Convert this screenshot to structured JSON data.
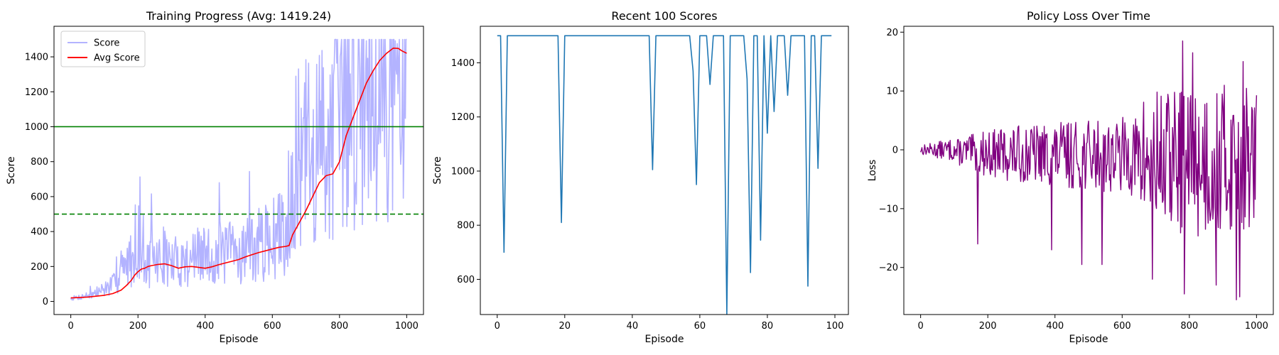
{
  "chart_data": [
    {
      "type": "line",
      "title": "Training Progress (Avg: 1419.24)",
      "xlabel": "Episode",
      "ylabel": "Score",
      "xlim": [
        -50,
        1050
      ],
      "ylim": [
        -75,
        1575
      ],
      "xticks": [
        0,
        200,
        400,
        600,
        800,
        1000
      ],
      "yticks": [
        0,
        200,
        400,
        600,
        800,
        1000,
        1200,
        1400
      ],
      "legend": "upper-left",
      "hlines": [
        {
          "y": 1000,
          "style": "solid",
          "color": "#008000"
        },
        {
          "y": 500,
          "style": "dashed",
          "color": "#008000"
        }
      ],
      "series": [
        {
          "name": "Score",
          "color": "#b3b3ff",
          "x": [
            0,
            20,
            40,
            60,
            80,
            100,
            120,
            140,
            150,
            160,
            170,
            180,
            190,
            200,
            210,
            220,
            240,
            260,
            280,
            300,
            320,
            340,
            360,
            380,
            400,
            420,
            440,
            460,
            480,
            500,
            520,
            540,
            560,
            580,
            600,
            620,
            640,
            650,
            660,
            680,
            700,
            720,
            740,
            760,
            780,
            800,
            820,
            840,
            860,
            880,
            900,
            920,
            940,
            960,
            980,
            1000
          ],
          "values": [
            20,
            25,
            35,
            40,
            60,
            80,
            100,
            120,
            260,
            160,
            300,
            250,
            380,
            420,
            260,
            200,
            280,
            250,
            300,
            230,
            270,
            250,
            290,
            280,
            300,
            270,
            310,
            300,
            320,
            300,
            350,
            330,
            360,
            370,
            400,
            420,
            450,
            700,
            820,
            900,
            950,
            880,
            1000,
            1050,
            1150,
            1100,
            1250,
            1300,
            1400,
            1450,
            1480,
            1500,
            1420,
            1500,
            1350,
            1400
          ]
        },
        {
          "name": "Avg Score",
          "color": "#ff0000",
          "x": [
            0,
            25,
            50,
            75,
            100,
            125,
            150,
            165,
            180,
            190,
            200,
            210,
            220,
            230,
            240,
            260,
            280,
            300,
            320,
            340,
            360,
            380,
            400,
            420,
            440,
            460,
            480,
            500,
            520,
            540,
            560,
            580,
            600,
            620,
            640,
            650,
            660,
            680,
            700,
            720,
            740,
            760,
            780,
            800,
            820,
            840,
            860,
            880,
            900,
            920,
            940,
            960,
            975,
            985,
            1000
          ],
          "values": [
            20,
            22,
            25,
            30,
            35,
            45,
            65,
            90,
            120,
            150,
            170,
            185,
            190,
            200,
            205,
            212,
            215,
            205,
            190,
            198,
            200,
            195,
            190,
            198,
            210,
            220,
            230,
            240,
            255,
            268,
            280,
            290,
            300,
            310,
            315,
            320,
            380,
            450,
            520,
            600,
            680,
            720,
            730,
            800,
            950,
            1050,
            1150,
            1250,
            1320,
            1380,
            1420,
            1450,
            1448,
            1435,
            1420
          ]
        }
      ]
    },
    {
      "type": "line",
      "title": "Recent 100 Scores",
      "xlabel": "Episode",
      "ylabel": "Score",
      "xlim": [
        -5,
        104
      ],
      "ylim": [
        470,
        1535
      ],
      "xticks": [
        0,
        20,
        40,
        60,
        80,
        100
      ],
      "yticks": [
        600,
        800,
        1000,
        1200,
        1400
      ],
      "series": [
        {
          "color": "#1f77b4",
          "values": [
            1500,
            1500,
            700,
            1500,
            1500,
            1500,
            1500,
            1500,
            1500,
            1500,
            1500,
            1500,
            1500,
            1500,
            1500,
            1500,
            1500,
            1500,
            1500,
            810,
            1500,
            1500,
            1500,
            1500,
            1500,
            1500,
            1500,
            1500,
            1500,
            1500,
            1500,
            1500,
            1500,
            1500,
            1500,
            1500,
            1500,
            1500,
            1500,
            1500,
            1500,
            1500,
            1500,
            1500,
            1500,
            1500,
            1005,
            1500,
            1500,
            1500,
            1500,
            1500,
            1500,
            1500,
            1500,
            1500,
            1500,
            1500,
            1370,
            950,
            1500,
            1500,
            1500,
            1320,
            1500,
            1500,
            1500,
            1500,
            470,
            1500,
            1500,
            1500,
            1500,
            1500,
            1340,
            625,
            1500,
            1500,
            745,
            1500,
            1140,
            1500,
            1220,
            1500,
            1500,
            1500,
            1280,
            1500,
            1500,
            1500,
            1500,
            1500,
            575,
            1500,
            1500,
            1010,
            1500,
            1500,
            1500,
            1500
          ]
        }
      ]
    },
    {
      "type": "line",
      "title": "Policy Loss Over Time",
      "xlabel": "Episode",
      "ylabel": "Loss",
      "xlim": [
        -50,
        1050
      ],
      "ylim": [
        -28,
        21
      ],
      "xticks": [
        0,
        200,
        400,
        600,
        800,
        1000
      ],
      "yticks": [
        -20,
        -10,
        0,
        10,
        20
      ],
      "series": [
        {
          "color": "#800080",
          "amplitude_profile": {
            "x": [
              0,
              100,
              200,
              300,
              400,
              500,
              600,
              650,
              660,
              700,
              800,
              900,
              1000
            ],
            "amp": [
              0.8,
              2,
              4,
              5,
              5.5,
              6,
              6.5,
              7,
              11,
              12,
              13,
              13,
              12
            ]
          },
          "extremes": {
            "x": [
              170,
              390,
              480,
              540,
              690,
              780,
              785,
              810,
              880,
              940,
              950,
              960
            ],
            "values": [
              -16,
              -17,
              -19.5,
              -19.5,
              -22,
              18.5,
              -24.5,
              16.5,
              -23,
              -25.5,
              -25,
              15
            ]
          }
        }
      ]
    }
  ]
}
